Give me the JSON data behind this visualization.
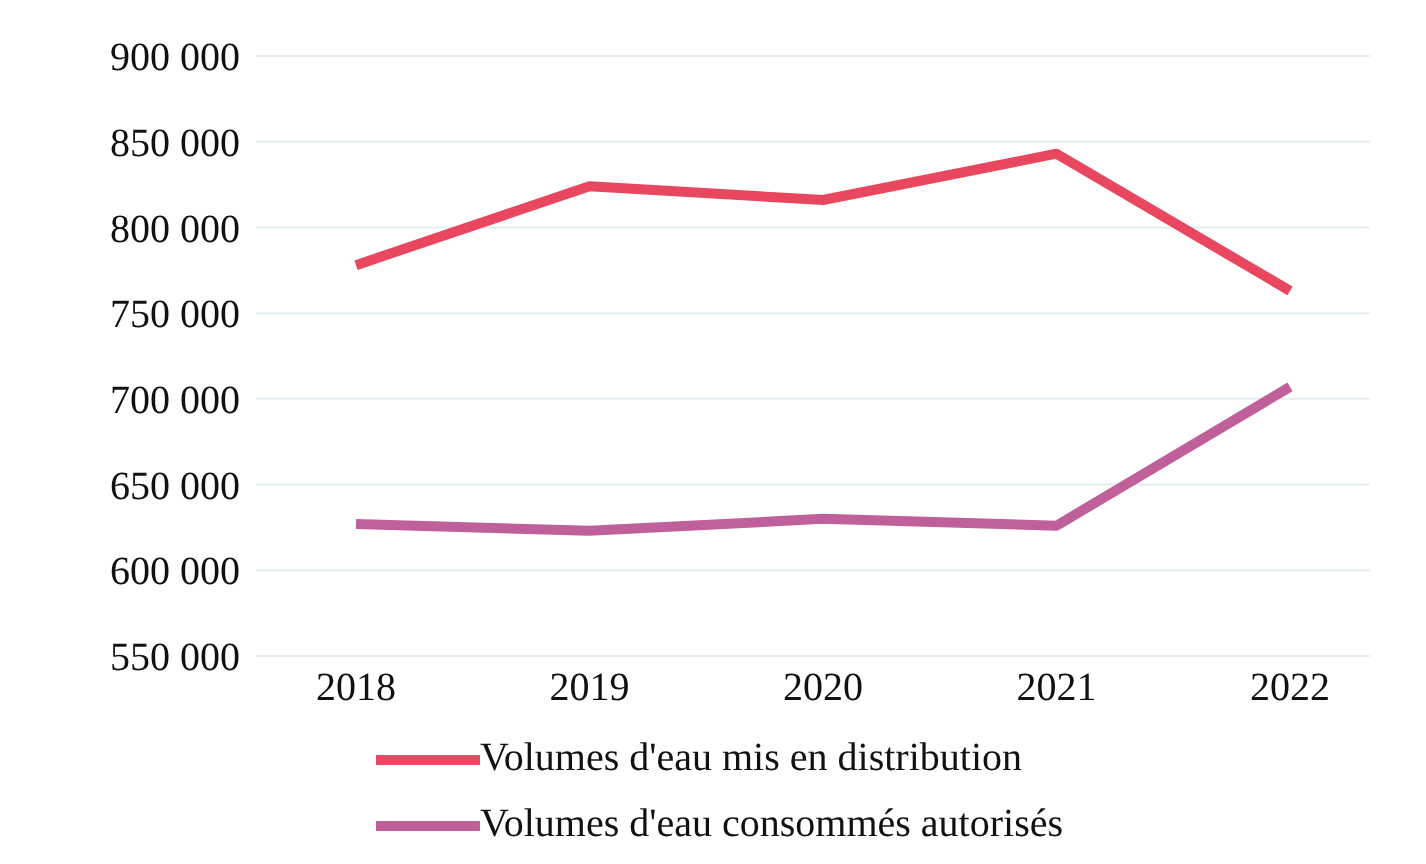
{
  "chart_data": {
    "type": "line",
    "categories": [
      "2018",
      "2019",
      "2020",
      "2021",
      "2022"
    ],
    "series": [
      {
        "name": "Volumes d'eau mis en distribution",
        "color": "#e8475f",
        "values": [
          778000,
          824000,
          816000,
          843000,
          763000
        ]
      },
      {
        "name": "Volumes d'eau consommés autorisés",
        "color": "#c0609a",
        "values": [
          627000,
          623000,
          630000,
          626000,
          707000
        ]
      }
    ],
    "ylim": [
      550000,
      900000
    ],
    "yticks": [
      {
        "value": 550000,
        "label": "550 000"
      },
      {
        "value": 600000,
        "label": "600 000"
      },
      {
        "value": 650000,
        "label": "650 000"
      },
      {
        "value": 700000,
        "label": "700 000"
      },
      {
        "value": 750000,
        "label": "750 000"
      },
      {
        "value": 800000,
        "label": "800 000"
      },
      {
        "value": 850000,
        "label": "850 000"
      },
      {
        "value": 900000,
        "label": "900 000"
      }
    ],
    "grid": "y",
    "legend": "bottom",
    "marker": "none",
    "line_style": "solid"
  }
}
